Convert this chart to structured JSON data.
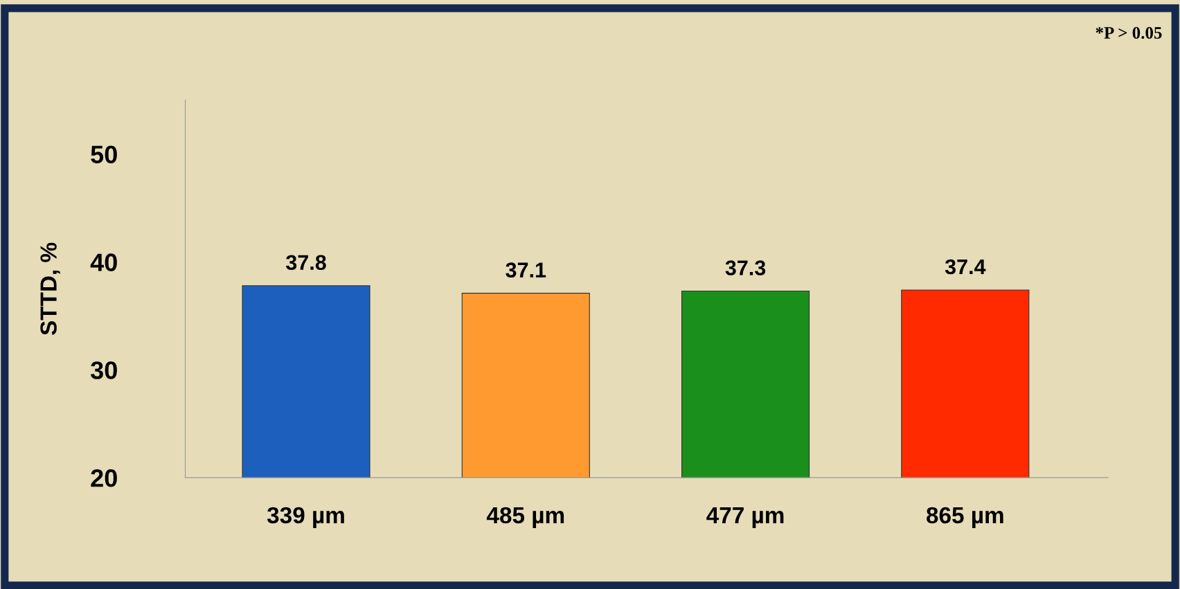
{
  "chart_data": {
    "type": "bar",
    "ylabel": "STTD, %",
    "categories": [
      "339 µm",
      "485 µm",
      "477 µm",
      "865 µm"
    ],
    "values": [
      37.8,
      37.1,
      37.3,
      37.4
    ],
    "colors": [
      "#1c5fbd",
      "#ff9a30",
      "#1b8f1b",
      "#ff2a00"
    ],
    "ylim": [
      20,
      55
    ],
    "yticks": [
      20,
      30,
      40,
      50
    ],
    "data_labels": true,
    "grid": false,
    "legend": false,
    "annotations": [
      "*P > 0.05"
    ]
  }
}
